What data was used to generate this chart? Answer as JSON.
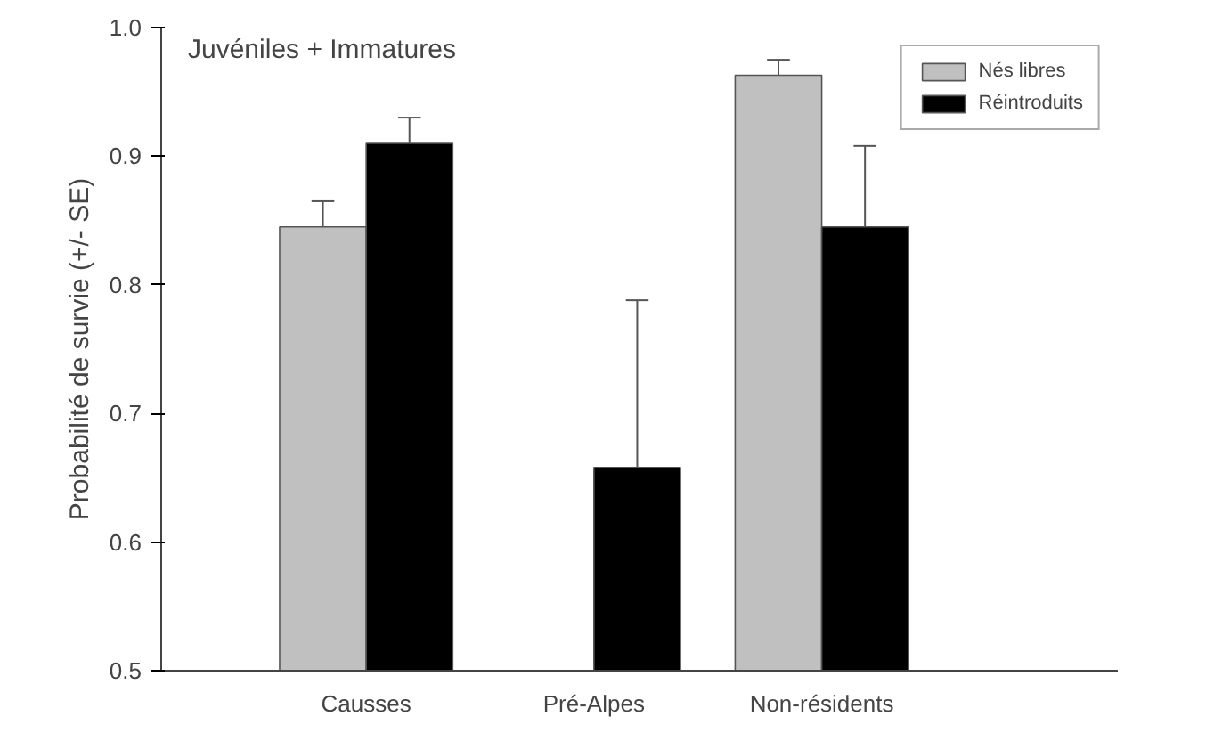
{
  "chart_data": {
    "type": "bar",
    "title": "Juvéniles + Immatures",
    "ylabel": "Probabilité de survie (+/- SE)",
    "categories": [
      "Causses",
      "Pré-Alpes",
      "Non-résidents"
    ],
    "series": [
      {
        "name": "Nés libres",
        "color": "#c0c0c0",
        "values": [
          0.845,
          null,
          0.963
        ],
        "errors": [
          [
            0.845,
            0.865
          ],
          null,
          [
            0.963,
            0.975
          ]
        ]
      },
      {
        "name": "Réintroduits",
        "color": "#000000",
        "values": [
          0.91,
          0.658,
          0.845
        ],
        "errors": [
          [
            0.91,
            0.93
          ],
          [
            0.658,
            0.788
          ],
          [
            0.845,
            0.908
          ]
        ]
      }
    ],
    "ylim": [
      0.5,
      1.0
    ],
    "yticks": [
      0.5,
      0.6,
      0.7,
      0.8,
      0.9,
      {
        "value": 1.0,
        "label": "1.0"
      }
    ],
    "grid": false,
    "legend": "top right"
  }
}
